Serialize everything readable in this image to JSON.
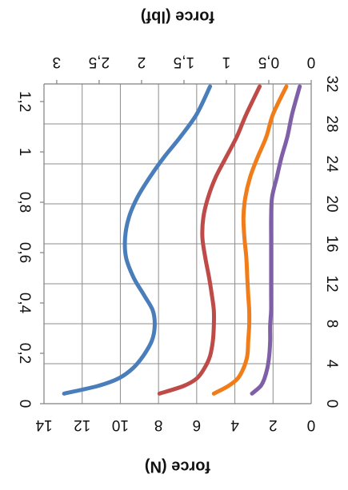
{
  "chart_data": {
    "type": "line",
    "orientation": "rotated-180",
    "title": "",
    "axes": {
      "bottom": {
        "label": "force (N)",
        "min": 0,
        "max": 14,
        "ticks": [
          14,
          12,
          10,
          8,
          6,
          4,
          2,
          0
        ]
      },
      "top": {
        "label": "force (lbf)",
        "min": 0,
        "max": 3.15,
        "ticks": [
          3,
          2.5,
          2,
          1.5,
          1,
          0.5,
          0
        ],
        "tick_labels": [
          "3",
          "2,5",
          "2",
          "1,5",
          "1",
          "0,5",
          "0"
        ]
      },
      "left": {
        "label": "",
        "min": 0,
        "max": 1.27,
        "ticks": [
          0,
          0.2,
          0.4,
          0.6,
          0.8,
          1,
          1.2
        ],
        "tick_labels": [
          "0",
          "0,2",
          "0,4",
          "0,6",
          "0,8",
          "1",
          "1,2"
        ]
      },
      "right": {
        "label": "",
        "min": 0,
        "max": 32,
        "ticks": [
          0,
          4,
          8,
          12,
          16,
          20,
          24,
          28,
          32
        ],
        "tick_labels": [
          "0",
          "4",
          "8",
          "12",
          "16",
          "20",
          "24",
          "28",
          "32"
        ]
      }
    },
    "grid": true,
    "legend": "none",
    "series": [
      {
        "color": "#4a7ebb",
        "x": [
          12.95,
          11.2,
          10.1,
          9.35,
          8.8,
          8.35,
          8.2,
          8.3,
          8.75,
          9.3,
          9.7,
          9.75,
          9.55,
          9.1,
          8.45,
          7.7,
          6.85,
          6.0,
          5.3
        ],
        "y": [
          0.04,
          0.07,
          0.1,
          0.14,
          0.19,
          0.25,
          0.31,
          0.37,
          0.43,
          0.5,
          0.58,
          0.66,
          0.74,
          0.82,
          0.9,
          0.98,
          1.06,
          1.15,
          1.26
        ]
      },
      {
        "color": "#be4b48",
        "x": [
          7.95,
          6.7,
          6.0,
          5.6,
          5.3,
          5.15,
          5.1,
          5.1,
          5.2,
          5.35,
          5.55,
          5.7,
          5.65,
          5.4,
          5.0,
          4.45,
          3.9,
          3.4,
          2.7
        ],
        "y": [
          0.04,
          0.07,
          0.1,
          0.14,
          0.19,
          0.25,
          0.31,
          0.37,
          0.43,
          0.5,
          0.58,
          0.66,
          0.74,
          0.82,
          0.9,
          0.98,
          1.06,
          1.15,
          1.26
        ]
      },
      {
        "color": "#f07d1a",
        "x": [
          5.1,
          4.35,
          3.85,
          3.55,
          3.35,
          3.3,
          3.25,
          3.25,
          3.3,
          3.35,
          3.4,
          3.5,
          3.55,
          3.45,
          3.2,
          2.8,
          2.35,
          2.0,
          1.3
        ],
        "y": [
          0.04,
          0.07,
          0.1,
          0.14,
          0.19,
          0.25,
          0.31,
          0.37,
          0.43,
          0.5,
          0.58,
          0.66,
          0.74,
          0.82,
          0.9,
          0.98,
          1.06,
          1.15,
          1.26
        ]
      },
      {
        "color": "#7f60a8",
        "x": [
          3.1,
          2.65,
          2.45,
          2.3,
          2.2,
          2.15,
          2.15,
          2.1,
          2.1,
          2.1,
          2.1,
          2.1,
          2.1,
          2.05,
          1.8,
          1.55,
          1.25,
          1.0,
          0.6
        ],
        "y": [
          0.04,
          0.07,
          0.1,
          0.14,
          0.19,
          0.25,
          0.31,
          0.37,
          0.43,
          0.5,
          0.58,
          0.66,
          0.74,
          0.82,
          0.9,
          0.98,
          1.06,
          1.15,
          1.26
        ]
      }
    ]
  }
}
